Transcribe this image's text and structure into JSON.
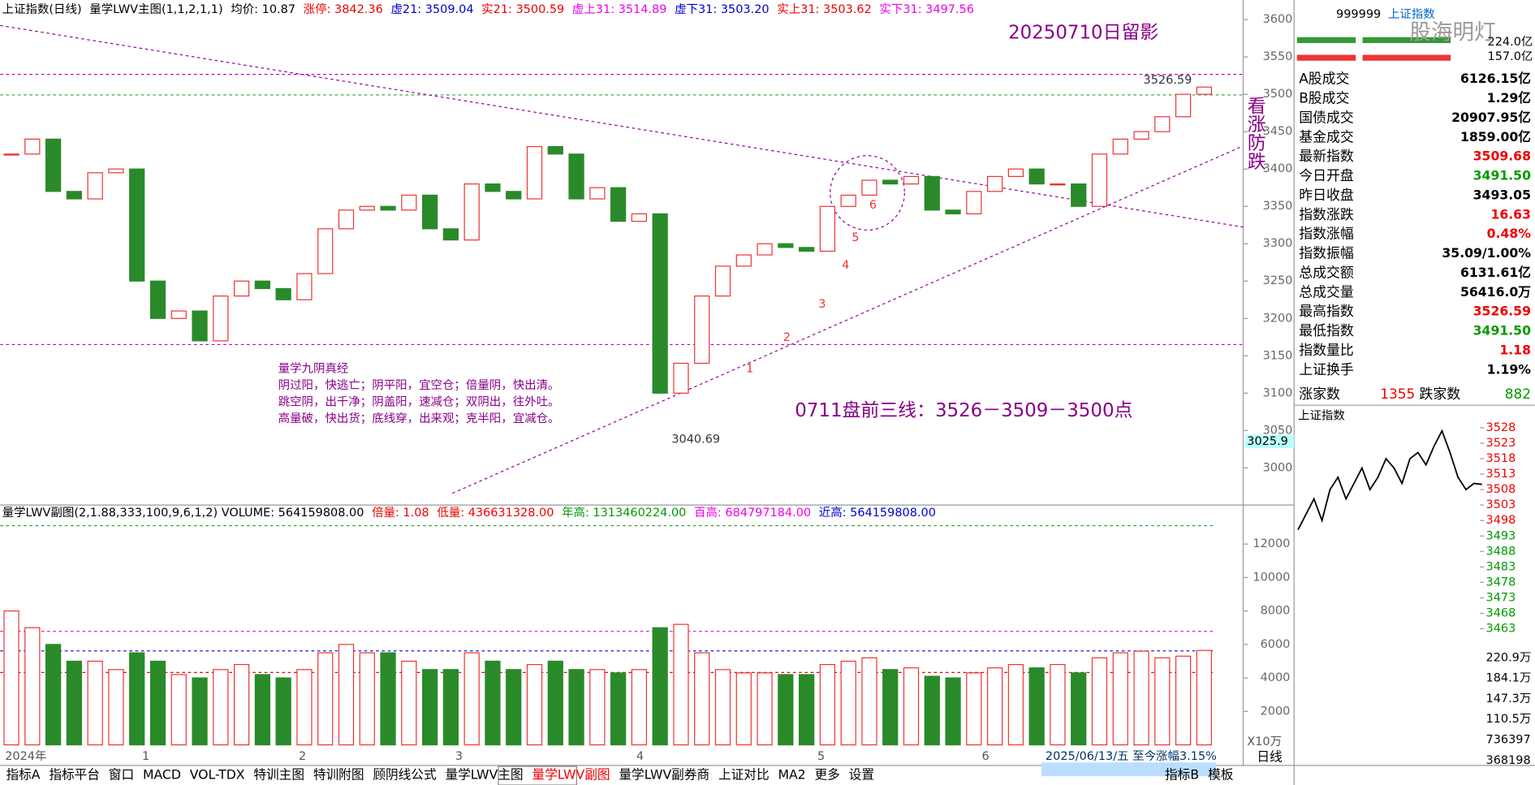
{
  "header": {
    "items": [
      "上证指数(日线)",
      "量学LWV主图(1,1,2,1,1)",
      "均价: 10.87",
      "涨停: 3842.36",
      "虚21: 3509.04",
      "实21: 3500.59",
      "虚上31: 3514.89",
      "虚下31: 3503.20",
      "实上31: 3503.62",
      "实下31: 3497.56"
    ],
    "colors": [
      "#000",
      "#000",
      "#000",
      "#e00",
      "#00c",
      "#e00",
      "#e0e",
      "#00c",
      "#e00",
      "#e0e"
    ]
  },
  "volume_header": {
    "items": [
      "量学LWV副图(2,1.88,333,100,9,6,1,2) VOLUME: 564159808.00",
      "倍量: 1.08",
      "低量: 436631328.00",
      "年高: 1313460224.00",
      "百高: 684797184.00",
      "近高: 564159808.00"
    ],
    "colors": [
      "#000",
      "#e00",
      "#e00",
      "#090",
      "#e0e",
      "#00c"
    ]
  },
  "annotations": {
    "date": "20250710日留影",
    "vertical": "看涨防跌",
    "lines": "0711盘前三线：3526－3509－3500点",
    "high": "3526.59",
    "low": "3040.69",
    "box": "3025.9",
    "counts": [
      "1",
      "2",
      "3",
      "4",
      "5",
      "6"
    ],
    "poem": [
      "量学九阴真经",
      "阴过阳，快逃亡；阴平阳，宜空仓；倍量阴，快出清。",
      "跳空阴，出千净；阴盖阳，速减仓；双阴出，往外吐。",
      "高量破，快出货；底线穿，出来观；克半阳，宜减仓。"
    ]
  },
  "chart": {
    "price_ticks": [
      3600,
      3550,
      3500,
      3450,
      3400,
      3350,
      3300,
      3250,
      3200,
      3150,
      3100,
      3050,
      3000
    ],
    "closes": [
      3420,
      3440,
      3370,
      3360,
      3395,
      3400,
      3250,
      3200,
      3210,
      3170,
      3230,
      3250,
      3240,
      3225,
      3260,
      3320,
      3345,
      3350,
      3345,
      3365,
      3320,
      3305,
      3380,
      3370,
      3360,
      3430,
      3420,
      3360,
      3375,
      3330,
      3340,
      3100,
      3140,
      3230,
      3270,
      3285,
      3300,
      3295,
      3290,
      3350,
      3365,
      3385,
      3380,
      3390,
      3345,
      3340,
      3370,
      3390,
      3400,
      3380,
      3380,
      3350,
      3420,
      3440,
      3450,
      3470,
      3500,
      3509.68
    ],
    "volumes": [
      8000,
      7000,
      6000,
      5000,
      5000,
      4500,
      5500,
      5000,
      4200,
      4000,
      4500,
      4800,
      4200,
      4000,
      4500,
      5500,
      6000,
      5500,
      5500,
      5000,
      4500,
      4500,
      5500,
      5000,
      4500,
      4800,
      5000,
      4500,
      4500,
      4300,
      4500,
      7000,
      7200,
      5500,
      4500,
      4300,
      4300,
      4200,
      4200,
      4800,
      5000,
      5200,
      4500,
      4600,
      4100,
      4000,
      4300,
      4600,
      4800,
      4600,
      4800,
      4300,
      5200,
      5500,
      5600,
      5200,
      5300,
      5641.6
    ],
    "volume_ticks": [
      12000,
      10000,
      8000,
      6000,
      4000,
      2000
    ],
    "x_labels": [
      "2024年",
      "1",
      "2",
      "3",
      "4",
      "5",
      "6"
    ],
    "status": "2025/06/13/五  至今涨幅3.15%"
  },
  "side": {
    "code": "999999",
    "name": "上证指数",
    "logo": "股海明灯",
    "top1": "224.0亿",
    "top2": "157.0亿",
    "rows": [
      [
        "A股成交",
        "6126.15亿"
      ],
      [
        "B股成交",
        "1.29亿"
      ],
      [
        "国债成交",
        "20907.95亿"
      ],
      [
        "基金成交",
        "1859.00亿"
      ],
      [
        "最新指数",
        "3509.68"
      ],
      [
        "今日开盘",
        "3491.50"
      ],
      [
        "昨日收盘",
        "3493.05"
      ],
      [
        "指数涨跌",
        "16.63"
      ],
      [
        "指数涨幅",
        "0.48%"
      ],
      [
        "指数振幅",
        "35.09/1.00%"
      ],
      [
        "总成交额",
        "6131.61亿"
      ],
      [
        "总成交量",
        "56416.0万"
      ],
      [
        "最高指数",
        "3526.59"
      ],
      [
        "最低指数",
        "3491.50"
      ],
      [
        "指数量比",
        "1.18"
      ],
      [
        "上证换手",
        "1.19%"
      ]
    ],
    "row_colors": [
      "#000",
      "#000",
      "#000",
      "#000",
      "#e00",
      "#090",
      "#000",
      "#e00",
      "#e00",
      "#000",
      "#000",
      "#000",
      "#e00",
      "#090",
      "#e00",
      "#000"
    ],
    "up_label": "涨家数",
    "up": "1355",
    "down_label": "跌家数",
    "down": "882",
    "mini_title": "上证指数",
    "mini_ticks": [
      3528,
      3523,
      3518,
      3513,
      3508,
      3503,
      3498,
      3493,
      3488,
      3483,
      3478,
      3473,
      3468,
      3463
    ],
    "mini_vol": [
      "220.9万",
      "184.1万",
      "147.3万",
      "110.5万",
      "736397",
      "368198"
    ],
    "mini_prices": [
      3495,
      3500,
      3505,
      3498,
      3508,
      3512,
      3505,
      3510,
      3515,
      3508,
      3512,
      3518,
      3515,
      3510,
      3518,
      3520,
      3516,
      3522,
      3527,
      3520,
      3512,
      3508,
      3510,
      3509.68
    ]
  },
  "tabs": [
    "指标A",
    "指标平台",
    "窗口",
    "MACD",
    "VOL-TDX",
    "特训主图",
    "特训附图",
    "顾阴线公式",
    "量学LWV主图",
    "量学LWV副图",
    "量学LWV副券商",
    "上证对比",
    "MA2",
    "更多",
    "设置"
  ],
  "tabs_right": [
    "指标B",
    "模板"
  ],
  "period": "日线",
  "scale": "X10万"
}
